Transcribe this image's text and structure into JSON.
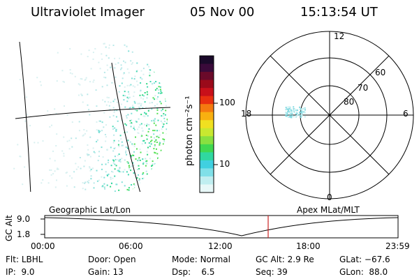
{
  "header": {
    "instrument": "Ultraviolet Imager",
    "date": "05 Nov 00",
    "time": "15:13:54 UT"
  },
  "colorbar": {
    "unit_label": "photon cm⁻²s⁻¹",
    "ticks": [
      "100",
      "10"
    ],
    "colors": [
      "#1a0a2a",
      "#3a0a3a",
      "#6a0a2a",
      "#9a0a1a",
      "#c8101a",
      "#e83010",
      "#f47a10",
      "#f8b010",
      "#f0e020",
      "#c8e830",
      "#88e040",
      "#40d850",
      "#30d8a0",
      "#40d0e0",
      "#80e0e8",
      "#c0eef0",
      "#e8f8f8"
    ]
  },
  "polar_plot": {
    "ring_labels": [
      "80",
      "70",
      "60"
    ],
    "mlt_labels": {
      "top": "12",
      "left": "18",
      "right": "6",
      "bottom": "0"
    }
  },
  "map_labels": {
    "left": "Geographic Lat/Lon",
    "right": "Apex MLat/MLT"
  },
  "altitude_plot": {
    "axis_label": "GC Alt",
    "y_ticks": [
      "9.0",
      "1.8"
    ],
    "x_ticks": [
      "00:00",
      "06:00",
      "12:00",
      "18:00",
      "23:59"
    ],
    "marker_color": "#cc2222"
  },
  "info": {
    "flt": {
      "label": "Flt:",
      "value": "LBHL"
    },
    "ip": {
      "label": "IP:",
      "value": "9.0"
    },
    "door": {
      "label": "Door:",
      "value": "Open"
    },
    "gain": {
      "label": "Gain:",
      "value": "13"
    },
    "mode": {
      "label": "Mode:",
      "value": "Normal"
    },
    "dsp": {
      "label": "Dsp:",
      "value": "6.5"
    },
    "gcalt": {
      "label": "GC Alt:",
      "value": "2.9 Re"
    },
    "seq": {
      "label": "Seq:",
      "value": "39"
    },
    "glat": {
      "label": "GLat:",
      "value": "−67.6"
    },
    "glon": {
      "label": "GLon:",
      "value": "88.0"
    }
  }
}
